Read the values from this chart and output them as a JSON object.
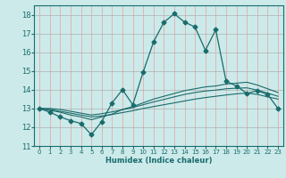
{
  "xlabel": "Humidex (Indice chaleur)",
  "bg_color": "#cceaea",
  "grid_color_x": "#e8a0a0",
  "grid_color_y": "#b0b0b0",
  "line_color": "#1a6b6b",
  "xlim": [
    -0.5,
    23.5
  ],
  "ylim": [
    11,
    18.5
  ],
  "yticks": [
    11,
    12,
    13,
    14,
    15,
    16,
    17,
    18
  ],
  "xticks": [
    0,
    1,
    2,
    3,
    4,
    5,
    6,
    7,
    8,
    9,
    10,
    11,
    12,
    13,
    14,
    15,
    16,
    17,
    18,
    19,
    20,
    21,
    22,
    23
  ],
  "lines": [
    {
      "x": [
        0,
        1,
        2,
        3,
        4,
        5,
        6,
        7,
        8,
        9,
        10,
        11,
        12,
        13,
        14,
        15,
        16,
        17,
        18,
        19,
        20,
        21,
        22,
        23
      ],
      "y": [
        13.0,
        12.8,
        12.55,
        12.35,
        12.2,
        11.6,
        12.3,
        13.3,
        14.0,
        13.2,
        14.95,
        16.55,
        17.6,
        18.05,
        17.6,
        17.35,
        16.1,
        17.2,
        14.45,
        14.2,
        13.8,
        13.95,
        13.75,
        13.0
      ],
      "marker": true
    },
    {
      "x": [
        0,
        1,
        2,
        3,
        4,
        5,
        6,
        7,
        8,
        9,
        10,
        11,
        12,
        13,
        14,
        15,
        16,
        17,
        18,
        19,
        20,
        21,
        22,
        23
      ],
      "y": [
        13.0,
        12.9,
        12.8,
        12.65,
        12.55,
        12.4,
        12.55,
        12.7,
        12.95,
        13.1,
        13.3,
        13.5,
        13.65,
        13.8,
        13.95,
        14.05,
        14.15,
        14.2,
        14.3,
        14.35,
        14.4,
        14.25,
        14.05,
        13.85
      ],
      "marker": false
    },
    {
      "x": [
        0,
        1,
        2,
        3,
        4,
        5,
        6,
        7,
        8,
        9,
        10,
        11,
        12,
        13,
        14,
        15,
        16,
        17,
        18,
        19,
        20,
        21,
        22,
        23
      ],
      "y": [
        13.0,
        13.0,
        12.95,
        12.85,
        12.75,
        12.65,
        12.72,
        12.82,
        12.93,
        13.05,
        13.2,
        13.35,
        13.48,
        13.62,
        13.75,
        13.85,
        13.93,
        13.98,
        14.05,
        14.08,
        14.1,
        13.98,
        13.82,
        13.65
      ],
      "marker": false
    },
    {
      "x": [
        0,
        1,
        2,
        3,
        4,
        5,
        6,
        7,
        8,
        9,
        10,
        11,
        12,
        13,
        14,
        15,
        16,
        17,
        18,
        19,
        20,
        21,
        22,
        23
      ],
      "y": [
        13.0,
        12.95,
        12.85,
        12.75,
        12.65,
        12.55,
        12.6,
        12.68,
        12.78,
        12.88,
        13.0,
        13.1,
        13.2,
        13.3,
        13.4,
        13.5,
        13.58,
        13.65,
        13.72,
        13.78,
        13.82,
        13.75,
        13.62,
        13.5
      ],
      "marker": false
    }
  ]
}
